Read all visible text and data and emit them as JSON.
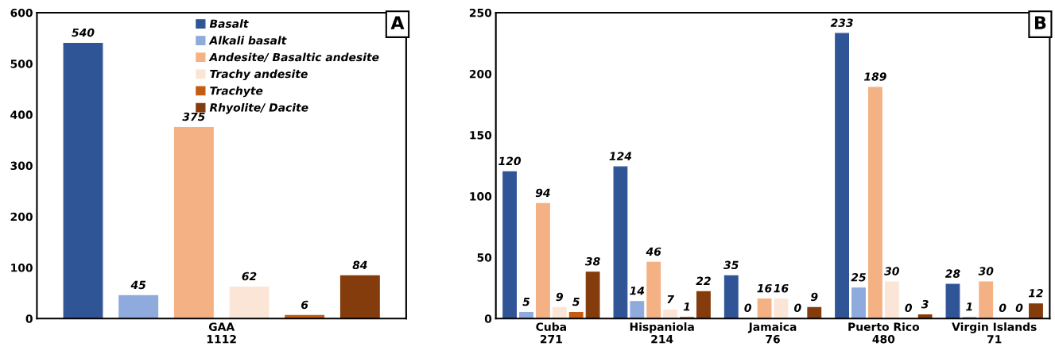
{
  "chart_data": [
    {
      "type": "bar",
      "categories": [
        "GAA\n1112"
      ],
      "ylim": [
        0,
        600
      ],
      "yticks": [
        0,
        100,
        200,
        300,
        400,
        500,
        600
      ],
      "grid": false,
      "legend": "top right",
      "data_labels": true,
      "annotations": [
        "A"
      ],
      "series": [
        {
          "name": "Basalt",
          "color": "#2f5597",
          "values": [
            540
          ]
        },
        {
          "name": "Alkali basalt",
          "color": "#8faadc",
          "values": [
            45
          ]
        },
        {
          "name": "Andesite/ Basaltic andesite",
          "color": "#f4b183",
          "values": [
            375
          ]
        },
        {
          "name": "Trachy andesite",
          "color": "#fbe5d6",
          "values": [
            62
          ]
        },
        {
          "name": "Trachyte",
          "color": "#c55a11",
          "values": [
            6
          ]
        },
        {
          "name": "Rhyolite/ Dacite",
          "color": "#843c0c",
          "values": [
            84
          ]
        }
      ]
    },
    {
      "type": "bar",
      "categories": [
        "Cuba\n271",
        "Hispaniola\n214",
        "Jamaica\n76",
        "Puerto Rico\n480",
        "Virgin Islands\n71"
      ],
      "ylim": [
        0,
        250
      ],
      "yticks": [
        0,
        50,
        100,
        150,
        200,
        250
      ],
      "grid": false,
      "data_labels": true,
      "annotations": [
        "B"
      ],
      "series": [
        {
          "color": "#2f5597",
          "values": [
            120,
            124,
            35,
            233,
            28
          ]
        },
        {
          "color": "#8faadc",
          "values": [
            5,
            14,
            0,
            25,
            1
          ]
        },
        {
          "color": "#f4b183",
          "values": [
            94,
            46,
            16,
            189,
            30
          ]
        },
        {
          "color": "#fbe5d6",
          "values": [
            9,
            7,
            16,
            30,
            0
          ]
        },
        {
          "color": "#c55a11",
          "values": [
            5,
            1,
            0,
            0,
            0
          ]
        },
        {
          "color": "#843c0c",
          "values": [
            38,
            22,
            9,
            3,
            12
          ]
        }
      ]
    }
  ]
}
